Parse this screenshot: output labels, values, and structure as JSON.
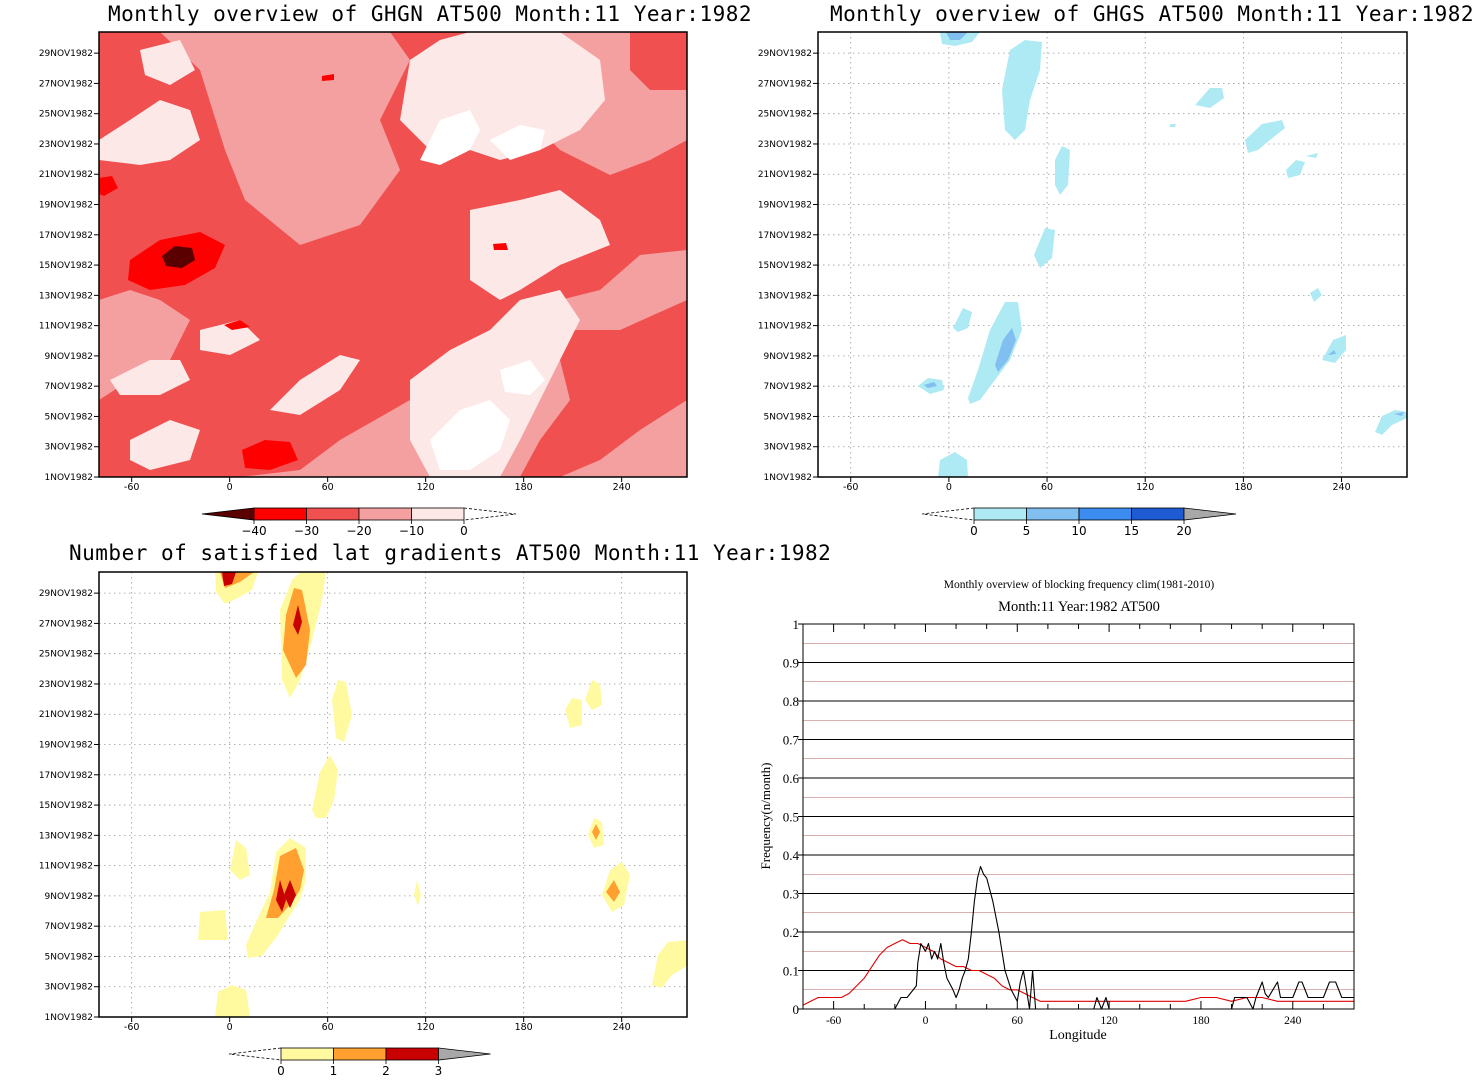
{
  "panels": {
    "ghgn": {
      "title": "Monthly overview of GHGN AT500 Month:11 Year:1982",
      "colorbar": {
        "levels": [
          -40,
          -30,
          -20,
          -10,
          0
        ],
        "colors": [
          "#5a0000",
          "#ff0000",
          "#f05050",
          "#f5a0a0",
          "#fde8e8",
          "#ffffff"
        ]
      }
    },
    "ghgs": {
      "title": "Monthly overview of GHGS AT500 Month:11 Year:1982",
      "colorbar": {
        "levels": [
          0,
          5,
          10,
          15,
          20
        ],
        "colors": [
          "#ffffff",
          "#aeeaf4",
          "#80bff0",
          "#3c8cf0",
          "#1e5ad2",
          "#a8a8a8"
        ]
      }
    },
    "gradients": {
      "title": "Number of satisfied lat gradients AT500 Month:11 Year:1982",
      "colorbar": {
        "levels": [
          0,
          1,
          2,
          3
        ],
        "colors": [
          "#ffffff",
          "#fffaa0",
          "#ffa030",
          "#c80000",
          "#a8a8a8"
        ]
      }
    }
  },
  "shared_axes": {
    "x_ticks": [
      -60,
      0,
      60,
      120,
      180,
      240
    ],
    "y_ticks": [
      "1NOV1982",
      "3NOV1982",
      "5NOV1982",
      "7NOV1982",
      "9NOV1982",
      "11NOV1982",
      "13NOV1982",
      "15NOV1982",
      "17NOV1982",
      "19NOV1982",
      "21NOV1982",
      "23NOV1982",
      "25NOV1982",
      "27NOV1982",
      "29NOV1982"
    ]
  },
  "chart_data": [
    {
      "type": "heatmap",
      "title": "Monthly overview of GHGN AT500 Month:11 Year:1982",
      "xlim": [
        -80,
        280
      ],
      "x_ticks": [
        -60,
        0,
        60,
        120,
        180,
        240
      ],
      "y_ticks": [
        "1NOV1982",
        "3NOV1982",
        "5NOV1982",
        "7NOV1982",
        "9NOV1982",
        "11NOV1982",
        "13NOV1982",
        "15NOV1982",
        "17NOV1982",
        "19NOV1982",
        "21NOV1982",
        "23NOV1982",
        "25NOV1982",
        "27NOV1982",
        "29NOV1982"
      ],
      "colorbar_levels": [
        -40,
        -30,
        -20,
        -10,
        0
      ],
      "features": [
        {
          "x": -35,
          "date": "15NOV1982",
          "value": -45
        },
        {
          "x": -40,
          "date": "15NOV1982",
          "value": -35
        },
        {
          "x": 20,
          "date": "3NOV1982",
          "value": -35
        },
        {
          "x": 150,
          "date": "23NOV1982",
          "value": -5
        },
        {
          "x": 170,
          "date": "5NOV1982",
          "value": -5
        }
      ]
    },
    {
      "type": "heatmap",
      "title": "Monthly overview of GHGS AT500 Month:11 Year:1982",
      "xlim": [
        -80,
        280
      ],
      "x_ticks": [
        -60,
        0,
        60,
        120,
        180,
        240
      ],
      "y_ticks": [
        "1NOV1982",
        "3NOV1982",
        "5NOV1982",
        "7NOV1982",
        "9NOV1982",
        "11NOV1982",
        "13NOV1982",
        "15NOV1982",
        "17NOV1982",
        "19NOV1982",
        "21NOV1982",
        "23NOV1982",
        "25NOV1982",
        "27NOV1982",
        "29NOV1982"
      ],
      "colorbar_levels": [
        0,
        5,
        10,
        15,
        20
      ],
      "features": [
        {
          "x": 35,
          "date": "9NOV1982",
          "value": 7
        },
        {
          "x": 45,
          "date": "27NOV1982",
          "value": 3
        },
        {
          "x": 0,
          "date": "30NOV1982",
          "value": 7
        },
        {
          "x": -12,
          "date": "7NOV1982",
          "value": 7
        }
      ]
    },
    {
      "type": "heatmap",
      "title": "Number of satisfied lat gradients AT500 Month:11 Year:1982",
      "xlim": [
        -80,
        280
      ],
      "x_ticks": [
        -60,
        0,
        60,
        120,
        180,
        240
      ],
      "y_ticks": [
        "1NOV1982",
        "3NOV1982",
        "5NOV1982",
        "7NOV1982",
        "9NOV1982",
        "11NOV1982",
        "13NOV1982",
        "15NOV1982",
        "17NOV1982",
        "19NOV1982",
        "21NOV1982",
        "23NOV1982",
        "25NOV1982",
        "27NOV1982",
        "29NOV1982"
      ],
      "colorbar_levels": [
        0,
        1,
        2,
        3
      ],
      "features": [
        {
          "x": 42,
          "date": "27NOV1982",
          "value": 2.5
        },
        {
          "x": 35,
          "date": "9NOV1982",
          "value": 2.5
        },
        {
          "x": 0,
          "date": "30NOV1982",
          "value": 2.5
        },
        {
          "x": 225,
          "date": "13NOV1982",
          "value": 1.5
        },
        {
          "x": 235,
          "date": "9NOV1982",
          "value": 1.5
        }
      ]
    },
    {
      "type": "line",
      "title": "Monthly overview of blocking frequency clim(1981-2010)",
      "subtitle": "Month:11 Year:1982  AT500",
      "xlabel": "Longitude",
      "ylabel": "Frequency(n/month)",
      "xlim": [
        -80,
        280
      ],
      "ylim": [
        0,
        1
      ],
      "x_ticks": [
        -60,
        0,
        60,
        120,
        180,
        240
      ],
      "y_ticks": [
        0,
        0.1,
        0.2,
        0.3,
        0.4,
        0.5,
        0.6,
        0.7,
        0.8,
        0.9,
        1
      ],
      "grid": true,
      "series": [
        {
          "color": "#000000",
          "x": [
            -80,
            -20,
            -16,
            -12,
            -6,
            -5,
            -3,
            0,
            2,
            4,
            6,
            8,
            10,
            12,
            14,
            18,
            20,
            22,
            24,
            26,
            28,
            30,
            32,
            34,
            36,
            38,
            40,
            44,
            48,
            52,
            56,
            60,
            62,
            64,
            66,
            68,
            70,
            72,
            74,
            80,
            110,
            112,
            115,
            118,
            120,
            200,
            202,
            210,
            214,
            216,
            220,
            222,
            224,
            230,
            232,
            240,
            244,
            246,
            250,
            260,
            264,
            268,
            272,
            276,
            280
          ],
          "y": [
            0,
            0,
            0.03,
            0.03,
            0.06,
            0.12,
            0.17,
            0.15,
            0.17,
            0.13,
            0.15,
            0.13,
            0.17,
            0.12,
            0.08,
            0.05,
            0.03,
            0.05,
            0.08,
            0.1,
            0.13,
            0.2,
            0.28,
            0.34,
            0.37,
            0.35,
            0.34,
            0.28,
            0.2,
            0.1,
            0.05,
            0.02,
            0.07,
            0.1,
            0.05,
            0,
            0.1,
            0,
            0,
            0,
            0,
            0.03,
            0,
            0.03,
            0,
            0,
            0.03,
            0.03,
            0,
            0.03,
            0.07,
            0.04,
            0.03,
            0.07,
            0.03,
            0.03,
            0.07,
            0.07,
            0.03,
            0.03,
            0.07,
            0.07,
            0.03,
            0.03,
            0.03
          ]
        },
        {
          "color": "#e00000",
          "x": [
            -80,
            -75,
            -70,
            -62,
            -55,
            -50,
            -45,
            -40,
            -35,
            -30,
            -25,
            -20,
            -15,
            -10,
            -5,
            0,
            5,
            10,
            15,
            20,
            25,
            30,
            35,
            40,
            45,
            50,
            55,
            60,
            65,
            70,
            75,
            80,
            90,
            100,
            110,
            120,
            130,
            140,
            150,
            160,
            170,
            180,
            190,
            200,
            210,
            220,
            230,
            240,
            250,
            260,
            270,
            280
          ],
          "y": [
            0.01,
            0.02,
            0.03,
            0.03,
            0.03,
            0.04,
            0.06,
            0.08,
            0.11,
            0.14,
            0.16,
            0.17,
            0.18,
            0.17,
            0.17,
            0.16,
            0.15,
            0.13,
            0.12,
            0.11,
            0.11,
            0.1,
            0.1,
            0.09,
            0.08,
            0.06,
            0.05,
            0.05,
            0.04,
            0.03,
            0.02,
            0.02,
            0.02,
            0.02,
            0.02,
            0.02,
            0.02,
            0.02,
            0.02,
            0.02,
            0.02,
            0.03,
            0.03,
            0.02,
            0.03,
            0.03,
            0.02,
            0.02,
            0.02,
            0.02,
            0.02,
            0.02
          ]
        }
      ]
    }
  ]
}
